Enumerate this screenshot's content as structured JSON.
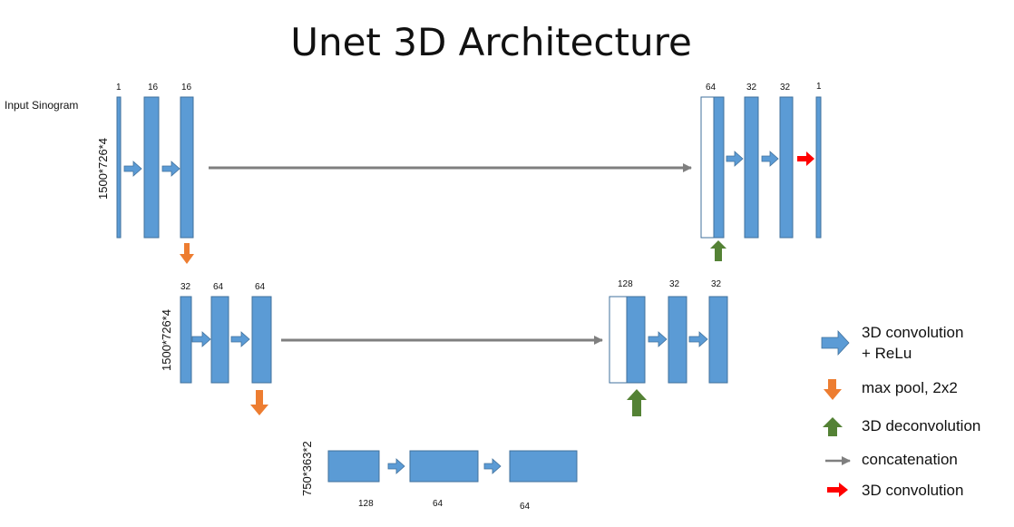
{
  "title": "Unet 3D Architecture",
  "input_label": "Input Sinogram",
  "dims": {
    "level1": "1500*726*4",
    "level2": "1500*726*4",
    "level3": "750*363*2"
  },
  "channels": {
    "l1_left": [
      "1",
      "16",
      "16"
    ],
    "l1_right": [
      "64",
      "32",
      "32",
      "1"
    ],
    "l2_left": [
      "32",
      "64",
      "64"
    ],
    "l2_right": [
      "128",
      "32",
      "32"
    ],
    "l3": [
      "128",
      "64",
      "64"
    ]
  },
  "legend": {
    "conv_relu": [
      "3D convolution",
      "+ ReLu"
    ],
    "maxpool": "max pool, 2x2",
    "deconv": "3D deconvolution",
    "concat": "concatenation",
    "conv": "3D convolution"
  },
  "colors": {
    "block": "#5b9bd5",
    "block_border": "#41719c",
    "conv_relu_arrow": "#5b9bd5",
    "maxpool_arrow": "#ed7d31",
    "deconv_arrow": "#548235",
    "concat_arrow": "#7f7f7f",
    "conv_arrow": "#ff0000"
  },
  "icons": {
    "conv_relu": "blue-right-arrow-icon",
    "maxpool": "orange-down-arrow-icon",
    "deconv": "green-up-arrow-icon",
    "concat": "gray-line-arrow-icon",
    "conv": "red-right-arrow-icon"
  }
}
